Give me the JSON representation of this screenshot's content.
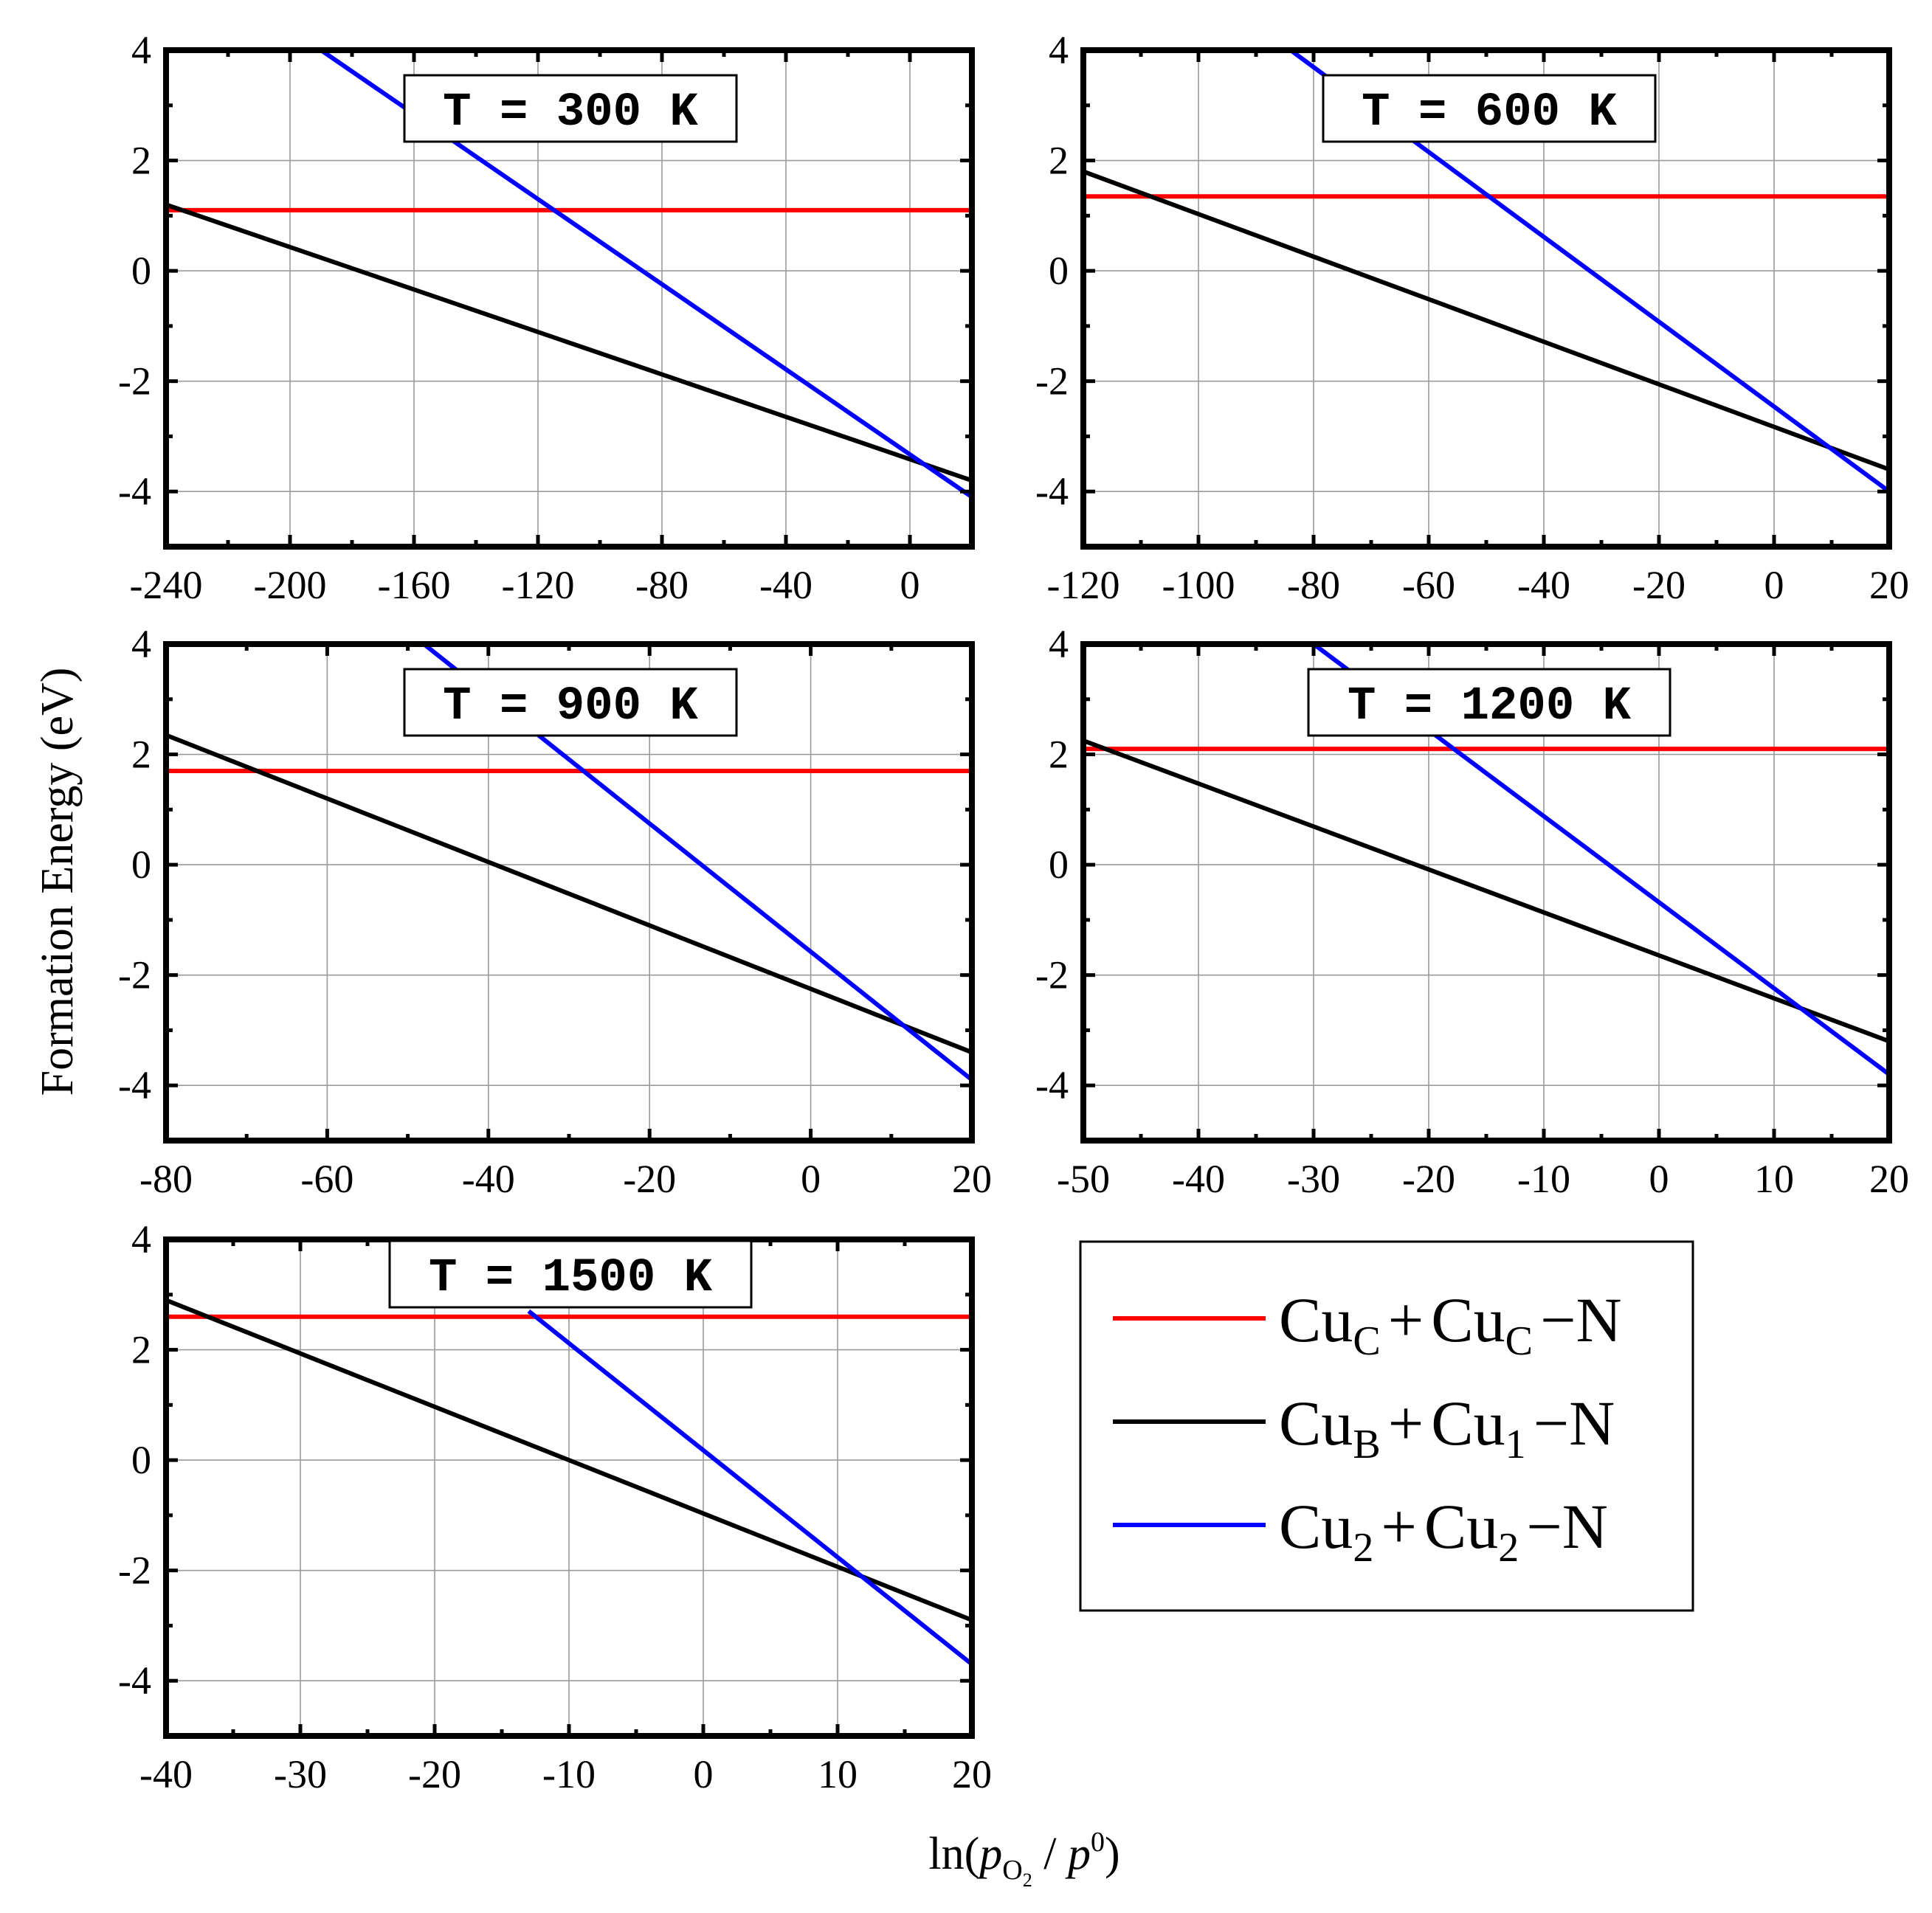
{
  "figure": {
    "ylabel": "Formation Energy (eV)",
    "xlabel": {
      "prefix": "ln(",
      "p": "p",
      "p_sub": "O",
      "p_subsub": "2",
      "slash": " / ",
      "p0": "p",
      "p0_sup": "0",
      "suffix": ")"
    }
  },
  "legend": {
    "entries": [
      {
        "base1": "Cu",
        "sub1": "C",
        "plus": "+",
        "base2": "Cu",
        "sub2": "C",
        "suffix": "−N",
        "color": "#ff0000"
      },
      {
        "base1": "Cu",
        "sub1": "B",
        "plus": "+",
        "base2": "Cu",
        "sub2": "1",
        "suffix": "−N",
        "color": "#000000"
      },
      {
        "base1": "Cu",
        "sub1": "2",
        "plus": "+",
        "base2": "Cu",
        "sub2": "2",
        "suffix": "−N",
        "color": "#0000ff"
      }
    ]
  },
  "chart_data": [
    {
      "type": "line",
      "title": "T = 300 K",
      "xlim": [
        -240,
        20
      ],
      "ylim": [
        -5,
        4
      ],
      "xticks": [
        -240,
        -200,
        -160,
        -120,
        -80,
        -40,
        0
      ],
      "yticks": [
        -4,
        -2,
        0,
        2,
        4
      ],
      "series": [
        {
          "name": "CuC + CuC−N",
          "color": "#ff0000",
          "x": [
            -240,
            20
          ],
          "y": [
            1.1,
            1.1
          ]
        },
        {
          "name": "CuB + Cu1−N",
          "color": "#000000",
          "x": [
            -240,
            20
          ],
          "y": [
            1.2,
            -3.8
          ]
        },
        {
          "name": "Cu2 + Cu2−N",
          "color": "#0000ff",
          "x": [
            -190,
            20
          ],
          "y": [
            4.0,
            -4.1
          ]
        }
      ]
    },
    {
      "type": "line",
      "title": "T = 600 K",
      "xlim": [
        -120,
        20
      ],
      "ylim": [
        -5,
        4
      ],
      "xticks": [
        -120,
        -100,
        -80,
        -60,
        -40,
        -20,
        0,
        20
      ],
      "yticks": [
        -4,
        -2,
        0,
        2,
        4
      ],
      "series": [
        {
          "name": "CuC + CuC−N",
          "color": "#ff0000",
          "x": [
            -120,
            20
          ],
          "y": [
            1.35,
            1.35
          ]
        },
        {
          "name": "CuB + Cu1−N",
          "color": "#000000",
          "x": [
            -120,
            20
          ],
          "y": [
            1.8,
            -3.6
          ]
        },
        {
          "name": "Cu2 + Cu2−N",
          "color": "#0000ff",
          "x": [
            -84,
            20
          ],
          "y": [
            4.0,
            -4.0
          ]
        }
      ]
    },
    {
      "type": "line",
      "title": "T = 900 K",
      "xlim": [
        -80,
        20
      ],
      "ylim": [
        -5,
        4
      ],
      "xticks": [
        -80,
        -60,
        -40,
        -20,
        0,
        20
      ],
      "yticks": [
        -4,
        -2,
        0,
        2,
        4
      ],
      "series": [
        {
          "name": "CuC + CuC−N",
          "color": "#ff0000",
          "x": [
            -80,
            20
          ],
          "y": [
            1.7,
            1.7
          ]
        },
        {
          "name": "CuB + Cu1−N",
          "color": "#000000",
          "x": [
            -80,
            20
          ],
          "y": [
            2.35,
            -3.4
          ]
        },
        {
          "name": "Cu2 + Cu2−N",
          "color": "#0000ff",
          "x": [
            -48,
            20
          ],
          "y": [
            4.0,
            -3.9
          ]
        }
      ]
    },
    {
      "type": "line",
      "title": "T = 1200 K",
      "xlim": [
        -50,
        20
      ],
      "ylim": [
        -5,
        4
      ],
      "xticks": [
        -50,
        -40,
        -30,
        -20,
        -10,
        0,
        10,
        20
      ],
      "yticks": [
        -4,
        -2,
        0,
        2,
        4
      ],
      "series": [
        {
          "name": "CuC + CuC−N",
          "color": "#ff0000",
          "x": [
            -50,
            20
          ],
          "y": [
            2.1,
            2.1
          ]
        },
        {
          "name": "CuB + Cu1−N",
          "color": "#000000",
          "x": [
            -50,
            20
          ],
          "y": [
            2.25,
            -3.2
          ]
        },
        {
          "name": "Cu2 + Cu2−N",
          "color": "#0000ff",
          "x": [
            -30,
            20
          ],
          "y": [
            4.0,
            -3.8
          ]
        }
      ]
    },
    {
      "type": "line",
      "title": "T = 1500 K",
      "xlim": [
        -40,
        20
      ],
      "ylim": [
        -5,
        4
      ],
      "xticks": [
        -40,
        -30,
        -20,
        -10,
        0,
        10,
        20
      ],
      "yticks": [
        -4,
        -2,
        0,
        2,
        4
      ],
      "series": [
        {
          "name": "CuC + CuC−N",
          "color": "#ff0000",
          "x": [
            -40,
            20
          ],
          "y": [
            2.6,
            2.6
          ]
        },
        {
          "name": "CuB + Cu1−N",
          "color": "#000000",
          "x": [
            -40,
            20
          ],
          "y": [
            2.9,
            -2.9
          ]
        },
        {
          "name": "Cu2 + Cu2−N",
          "color": "#0000ff",
          "x": [
            -13,
            20
          ],
          "y": [
            2.7,
            -3.7
          ]
        }
      ]
    }
  ]
}
